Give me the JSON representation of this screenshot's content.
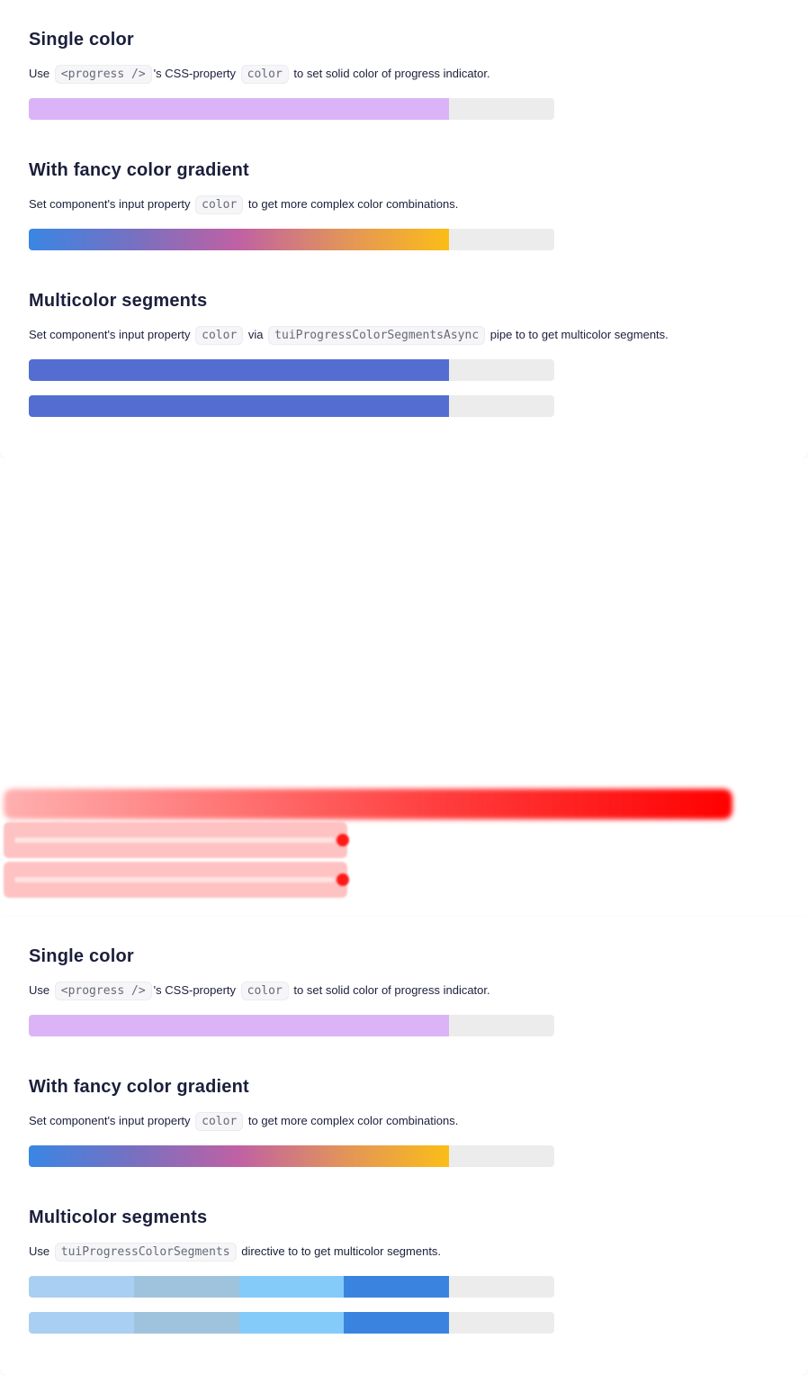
{
  "top": {
    "single": {
      "title": "Single color",
      "pre": "Use",
      "code1": "<progress />",
      "mid": "'s CSS-property",
      "code2": "color",
      "post": "to set solid color of progress indicator.",
      "progress": 0.8,
      "color": "#dab4f7"
    },
    "gradient": {
      "title": "With fancy color gradient",
      "pre": "Set component's input property",
      "code1": "color",
      "post": "to get more complex color combinations.",
      "progress": 0.8,
      "colors": [
        "#3a86e4",
        "#c061a3",
        "#fbbd18"
      ]
    },
    "multi": {
      "title": "Multicolor segments",
      "pre": "Set component's input property",
      "code1": "color",
      "mid": "via",
      "code2": "tuiProgressColorSegmentsAsync",
      "post": "pipe to to get multicolor segments.",
      "progress": 0.8,
      "color": "#536dd1"
    }
  },
  "bottom": {
    "single": {
      "title": "Single color",
      "pre": "Use",
      "code1": "<progress />",
      "mid": "'s CSS-property",
      "code2": "color",
      "post": "to set solid color of progress indicator.",
      "progress": 0.8,
      "color": "#dab4f7"
    },
    "gradient": {
      "title": "With fancy color gradient",
      "pre": "Set component's input property",
      "code1": "color",
      "post": "to get more complex color combinations.",
      "progress": 0.8,
      "colors": [
        "#3a86e4",
        "#c061a3",
        "#fbbd18"
      ]
    },
    "multi": {
      "title": "Multicolor segments",
      "pre": "Use",
      "code1": "tuiProgressColorSegments",
      "post": "directive to to get multicolor segments.",
      "progress": 0.8,
      "segment_colors": [
        "#a9cff2",
        "#a0c3dd",
        "#84cbfa",
        "#3a84df"
      ]
    }
  },
  "track_color": "#ececec"
}
